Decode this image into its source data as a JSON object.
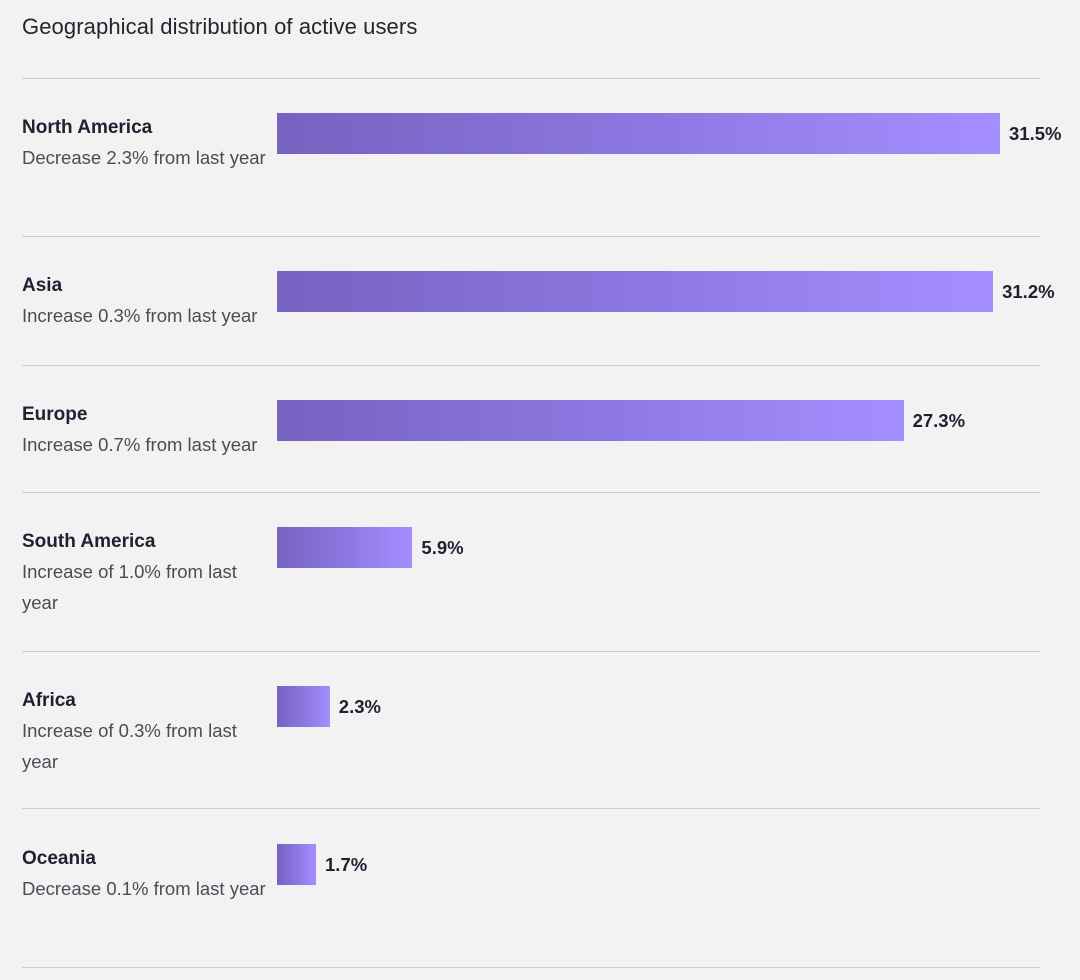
{
  "chart_data": {
    "type": "bar",
    "title": "Geographical distribution of active users",
    "categories": [
      "North America",
      "Asia",
      "Europe",
      "South America",
      "Africa",
      "Oceania"
    ],
    "values": [
      31.5,
      31.2,
      27.3,
      5.9,
      2.3,
      1.7
    ],
    "value_labels": [
      "31.5%",
      "31.2%",
      "27.3%",
      "5.9%",
      "2.3%",
      "1.7%"
    ],
    "notes": [
      "Decrease 2.3% from last year",
      "Increase 0.3% from last year",
      "Increase 0.7% from last year",
      "Increase of 1.0% from last year",
      "Increase of 0.3% from last year",
      "Decrease 0.1% from last year"
    ],
    "orientation": "horizontal",
    "xlim": [
      0,
      31.5
    ],
    "grid": false,
    "bar_gradient": [
      "#7762c0",
      "#a58fff"
    ]
  }
}
